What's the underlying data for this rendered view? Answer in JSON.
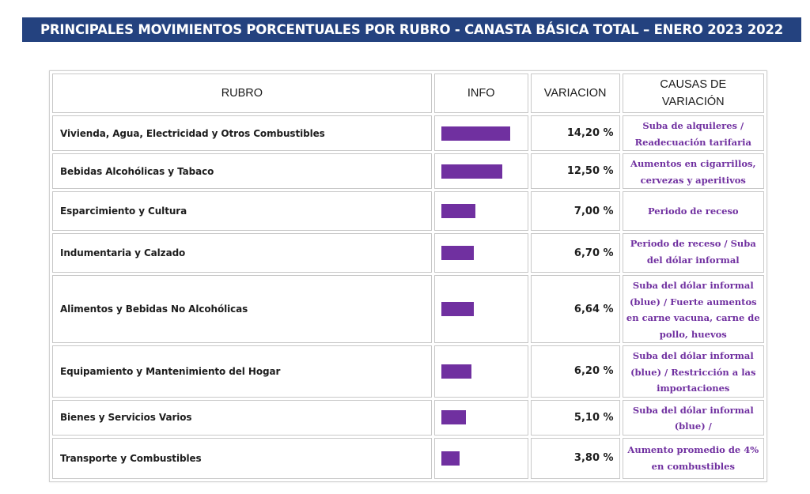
{
  "title": "PRINCIPALES MOVIMIENTOS PORCENTUALES POR RUBRO - CANASTA BÁSICA TOTAL – ENERO 2023 2022",
  "colors": {
    "header_bg": "#24427f",
    "bar": "#7030a0",
    "causa_text": "#7030a0"
  },
  "chart_data": {
    "type": "table",
    "columns": [
      "RUBRO",
      "INFO",
      "VARIACION",
      "CAUSAS  DE VARIACIÓN"
    ],
    "bar_scale_max": 14.2,
    "rows": [
      {
        "rubro": "Vivienda, Agua, Electricidad y Otros Combustibles",
        "value": 14.2,
        "variacion": "14,20 %",
        "causa": "Suba de alquileres / Readecuación tarifaria"
      },
      {
        "rubro": "Bebidas Alcohólicas y Tabaco",
        "value": 12.5,
        "variacion": "12,50 %",
        "causa": "Aumentos en cigarrillos, cervezas y aperitivos"
      },
      {
        "rubro": "Esparcimiento y Cultura",
        "value": 7.0,
        "variacion": "7,00 %",
        "causa": "Periodo de receso"
      },
      {
        "rubro": "Indumentaria y Calzado",
        "value": 6.7,
        "variacion": "6,70 %",
        "causa": "Periodo de receso /  Suba del dólar informal"
      },
      {
        "rubro": "Alimentos y Bebidas No Alcohólicas",
        "value": 6.64,
        "variacion": "6,64 %",
        "causa": "Suba del dólar informal (blue) / Fuerte aumentos en carne vacuna, carne de pollo, huevos"
      },
      {
        "rubro": "Equipamiento y Mantenimiento del Hogar",
        "value": 6.2,
        "variacion": "6,20 %",
        "causa": "Suba del dólar informal (blue) / Restricción a las importaciones"
      },
      {
        "rubro": "Bienes y Servicios Varios",
        "value": 5.1,
        "variacion": "5,10 %",
        "causa": "Suba del dólar informal (blue) /"
      },
      {
        "rubro": "Transporte y Combustibles",
        "value": 3.8,
        "variacion": "3,80 %",
        "causa": "Aumento promedio de 4% en combustibles"
      }
    ]
  }
}
